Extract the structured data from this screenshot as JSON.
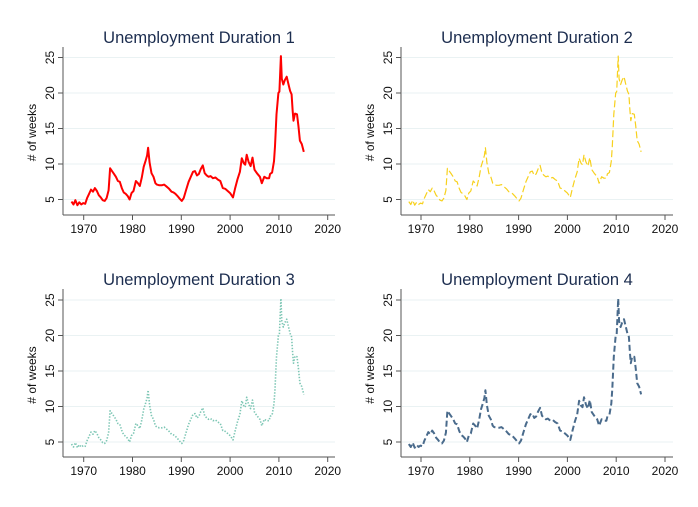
{
  "figure": {
    "description": "Four-panel line chart grid showing the same unemployment duration series with different line styles"
  },
  "chart_data": [
    {
      "type": "line",
      "title": "Unemployment Duration 1",
      "xlabel": "",
      "ylabel": "# of weeks",
      "xlim": [
        1966,
        2021.5
      ],
      "ylim": [
        3,
        26
      ],
      "xticks": [
        1970,
        1980,
        1990,
        2000,
        2010,
        2020
      ],
      "yticks": [
        5,
        10,
        15,
        20,
        25
      ],
      "grid": true,
      "legend": "none",
      "series": [
        {
          "name": "Unemployment Duration 1",
          "color": "#ff0000",
          "style": "solid",
          "ref": "duration"
        }
      ]
    },
    {
      "type": "line",
      "title": "Unemployment Duration 2",
      "xlabel": "",
      "ylabel": "# of weeks",
      "xlim": [
        1966,
        2021.5
      ],
      "ylim": [
        3,
        26
      ],
      "xticks": [
        1970,
        1980,
        1990,
        2000,
        2010,
        2020
      ],
      "yticks": [
        5,
        10,
        15,
        20,
        25
      ],
      "grid": true,
      "legend": "none",
      "series": [
        {
          "name": "Unemployment Duration 2",
          "color": "#f7d11e",
          "style": "dashed",
          "ref": "duration"
        }
      ]
    },
    {
      "type": "line",
      "title": "Unemployment Duration 3",
      "xlabel": "",
      "ylabel": "# of weeks",
      "xlim": [
        1966,
        2021.5
      ],
      "ylim": [
        3,
        26
      ],
      "xticks": [
        1970,
        1980,
        1990,
        2000,
        2010,
        2020
      ],
      "yticks": [
        5,
        10,
        15,
        20,
        25
      ],
      "grid": true,
      "legend": "none",
      "series": [
        {
          "name": "Unemployment Duration 3",
          "color": "#7cc6b4",
          "style": "dotted",
          "ref": "duration"
        }
      ]
    },
    {
      "type": "line",
      "title": "Unemployment Duration 4",
      "xlabel": "",
      "ylabel": "# of weeks",
      "xlim": [
        1966,
        2021.5
      ],
      "ylim": [
        3,
        26
      ],
      "xticks": [
        1970,
        1980,
        1990,
        2000,
        2010,
        2020
      ],
      "yticks": [
        5,
        10,
        15,
        20,
        25
      ],
      "grid": true,
      "legend": "none",
      "series": [
        {
          "name": "Unemployment Duration 4",
          "color": "#4a6b8c",
          "style": "long-dash",
          "ref": "duration"
        }
      ]
    }
  ],
  "duration": {
    "x": [
      1967.5,
      1967.9,
      1968.3,
      1968.7,
      1969.1,
      1969.5,
      1969.9,
      1970.3,
      1970.7,
      1971.1,
      1971.5,
      1971.9,
      1972.3,
      1972.7,
      1973.1,
      1973.5,
      1973.9,
      1974.3,
      1974.7,
      1975.1,
      1975.4,
      1975.8,
      1976.2,
      1976.6,
      1977.0,
      1977.4,
      1977.8,
      1978.2,
      1978.6,
      1979.0,
      1979.4,
      1979.8,
      1980.2,
      1980.7,
      1981.1,
      1981.5,
      1981.9,
      1982.3,
      1982.7,
      1983.0,
      1983.2,
      1983.5,
      1983.9,
      1984.3,
      1984.7,
      1985.0,
      1985.5,
      1986.0,
      1986.5,
      1987.0,
      1987.5,
      1988.0,
      1988.4,
      1988.8,
      1989.2,
      1989.7,
      1990.1,
      1990.5,
      1991.0,
      1991.5,
      1992.0,
      1992.4,
      1992.8,
      1993.2,
      1993.6,
      1994.0,
      1994.4,
      1994.8,
      1995.2,
      1995.6,
      1996.0,
      1996.5,
      1997.0,
      1997.5,
      1998.0,
      1998.5,
      1999.0,
      1999.5,
      2000.0,
      2000.6,
      2001.0,
      2001.5,
      2002.0,
      2002.4,
      2002.8,
      2003.1,
      2003.4,
      2003.8,
      2004.2,
      2004.6,
      2005.0,
      2005.5,
      2006.1,
      2006.5,
      2007.0,
      2007.5,
      2008.0,
      2008.2,
      2008.6,
      2009.0,
      2009.2,
      2009.5,
      2009.9,
      2010.1,
      2010.4,
      2010.6,
      2010.9,
      2011.2,
      2011.6,
      2011.9,
      2012.3,
      2012.6,
      2012.8,
      2013.0,
      2013.3,
      2013.7,
      2014.0,
      2014.3,
      2014.7,
      2015.1
    ],
    "y": [
      4.7,
      4.3,
      4.9,
      4.2,
      4.6,
      4.3,
      4.5,
      4.4,
      5.2,
      5.8,
      6.4,
      6.1,
      6.6,
      6.2,
      5.6,
      5.3,
      4.9,
      4.8,
      5.2,
      6.3,
      9.4,
      9.0,
      8.6,
      8.2,
      7.6,
      7.5,
      6.6,
      6.0,
      5.8,
      5.5,
      5.0,
      5.9,
      6.2,
      7.6,
      7.3,
      6.9,
      8.1,
      9.6,
      10.5,
      11.2,
      12.3,
      10.2,
      8.7,
      8.2,
      7.3,
      7.1,
      7.0,
      7.0,
      7.1,
      6.8,
      6.5,
      6.1,
      6.0,
      5.8,
      5.5,
      5.1,
      4.8,
      5.2,
      6.4,
      7.5,
      8.3,
      8.9,
      9.0,
      8.4,
      8.6,
      9.3,
      9.8,
      8.7,
      8.4,
      8.2,
      8.3,
      8.0,
      8.1,
      7.8,
      7.6,
      6.6,
      6.5,
      6.2,
      5.9,
      5.3,
      6.5,
      7.8,
      8.9,
      10.8,
      10.1,
      9.9,
      11.3,
      10.3,
      9.7,
      10.9,
      9.2,
      8.7,
      8.2,
      7.3,
      8.2,
      8.0,
      8.0,
      8.6,
      8.8,
      10.4,
      12.5,
      17.0,
      20.0,
      20.2,
      25.2,
      22.0,
      21.2,
      21.8,
      22.3,
      21.4,
      20.3,
      19.8,
      17.6,
      16.1,
      17.1,
      17.0,
      15.4,
      13.3,
      12.8,
      11.7
    ]
  },
  "panels": [
    {
      "title": "Unemployment Duration 1",
      "ylabel": "# of weeks",
      "xtick_labels": [
        "1970",
        "1980",
        "1990",
        "2000",
        "2010",
        "2020"
      ],
      "ytick_labels": [
        "5",
        "10",
        "15",
        "20",
        "25"
      ]
    },
    {
      "title": "Unemployment Duration 2",
      "ylabel": "# of weeks",
      "xtick_labels": [
        "1970",
        "1980",
        "1990",
        "2000",
        "2010",
        "2020"
      ],
      "ytick_labels": [
        "5",
        "10",
        "15",
        "20",
        "25"
      ]
    },
    {
      "title": "Unemployment Duration 3",
      "ylabel": "# of weeks",
      "xtick_labels": [
        "1970",
        "1980",
        "1990",
        "2000",
        "2010",
        "2020"
      ],
      "ytick_labels": [
        "5",
        "10",
        "15",
        "20",
        "25"
      ]
    },
    {
      "title": "Unemployment Duration 4",
      "ylabel": "# of weeks",
      "xtick_labels": [
        "1970",
        "1980",
        "1990",
        "2000",
        "2010",
        "2020"
      ],
      "ytick_labels": [
        "5",
        "10",
        "15",
        "20",
        "25"
      ]
    }
  ]
}
